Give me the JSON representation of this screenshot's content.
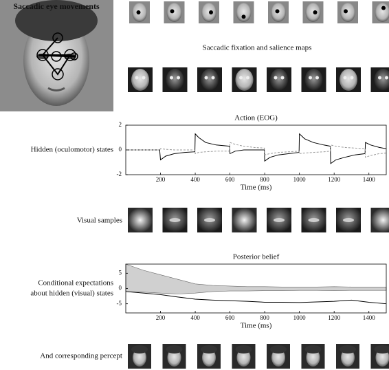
{
  "panels": {
    "saccades": {
      "title": "Saccadic eye movements"
    },
    "maps": {
      "title": "Saccadic fixation and salience maps"
    },
    "samples": {
      "label": "Visual samples"
    },
    "percept": {
      "label": "And corresponding percept"
    }
  },
  "chart_data": [
    {
      "type": "line",
      "title": "Action (EOG)",
      "ylabel": [
        "Hidden (oculomotor) states"
      ],
      "xlabel": "Time (ms)",
      "xlim": [
        0,
        1500
      ],
      "ylim": [
        -2,
        2
      ],
      "xticks": [
        200,
        400,
        600,
        800,
        1000,
        1200,
        1400
      ],
      "yticks": [
        -2,
        0,
        2
      ],
      "x": [
        0,
        195,
        200,
        230,
        280,
        340,
        398,
        400,
        420,
        460,
        520,
        598,
        600,
        630,
        680,
        740,
        798,
        800,
        830,
        880,
        940,
        998,
        1000,
        1030,
        1080,
        1140,
        1178,
        1180,
        1210,
        1260,
        1320,
        1378,
        1380,
        1410,
        1460,
        1500
      ],
      "series": [
        {
          "color": "#000000",
          "values": [
            0,
            0,
            -0.8,
            -0.5,
            -0.3,
            -0.2,
            -0.15,
            1.3,
            1.0,
            0.6,
            0.4,
            0.3,
            -0.3,
            -0.1,
            0,
            0,
            0,
            -0.9,
            -0.6,
            -0.4,
            -0.3,
            -0.2,
            1.3,
            0.9,
            0.6,
            0.4,
            0.3,
            -1.1,
            -0.8,
            -0.6,
            -0.4,
            -0.3,
            0.6,
            0.4,
            0.2,
            0.1
          ]
        },
        {
          "color": "#999999",
          "dashed": true,
          "values": [
            0,
            0,
            0.1,
            0.05,
            0,
            0,
            0,
            -0.3,
            -0.2,
            -0.15,
            -0.1,
            -0.1,
            0.6,
            0.45,
            0.3,
            0.2,
            0.15,
            -0.4,
            -0.3,
            -0.2,
            -0.15,
            -0.1,
            -0.3,
            -0.25,
            -0.2,
            -0.15,
            -0.1,
            0.4,
            0.3,
            0.2,
            0.15,
            0.1,
            -0.6,
            -0.45,
            -0.3,
            -0.25
          ]
        }
      ]
    },
    {
      "type": "band",
      "title": "Posterior belief",
      "ylabel": [
        "Conditional expectations",
        "about hidden (visual) states"
      ],
      "xlabel": "Time (ms)",
      "xlim": [
        0,
        1500
      ],
      "ylim": [
        -8,
        8
      ],
      "xticks": [
        200,
        400,
        600,
        800,
        1000,
        1200,
        1400
      ],
      "yticks": [
        -5,
        0,
        5
      ],
      "x": [
        0,
        100,
        200,
        300,
        400,
        500,
        600,
        700,
        800,
        900,
        1000,
        1100,
        1200,
        1300,
        1400,
        1500
      ],
      "band": {
        "color": "#d0d0d0",
        "upper": [
          8,
          6,
          4.5,
          3,
          1.5,
          1,
          0.8,
          0.6,
          0.6,
          0.5,
          0.5,
          0.5,
          0.6,
          0.5,
          0.5,
          0.5
        ],
        "lower": [
          -1,
          -1.2,
          -1.5,
          -1.8,
          -1.5,
          -1,
          -0.8,
          -0.8,
          -0.7,
          -0.7,
          -0.6,
          -0.6,
          -0.7,
          -0.6,
          -0.6,
          -0.6
        ]
      },
      "series": [
        {
          "color": "#000000",
          "values": [
            -1,
            -1.5,
            -2,
            -2.8,
            -3.5,
            -3.8,
            -4,
            -4.2,
            -4.5,
            -4.5,
            -4.6,
            -4.4,
            -4.2,
            -3.8,
            -4.5,
            -5
          ]
        }
      ]
    }
  ]
}
